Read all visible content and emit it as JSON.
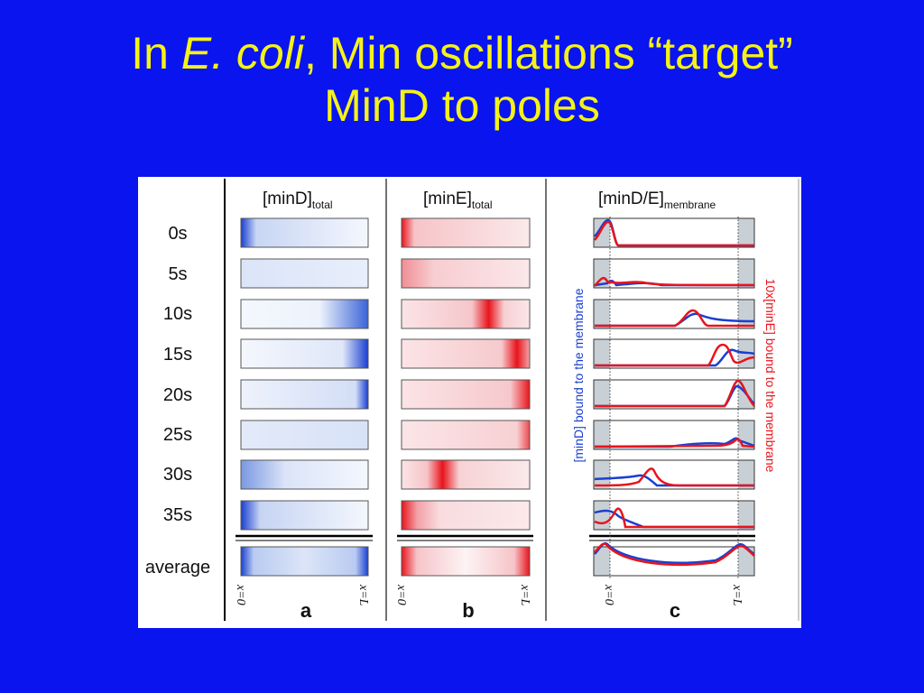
{
  "slide": {
    "title_pre": "In ",
    "title_em": "E. coli",
    "title_post": ", Min oscillations “target”",
    "title_line2": "MinD to poles"
  },
  "figure": {
    "time_labels": [
      "0s",
      "5s",
      "10s",
      "15s",
      "20s",
      "25s",
      "30s",
      "35s"
    ],
    "average_label": "average",
    "panels": {
      "a": {
        "label_main": "[minD]",
        "label_sub": "total",
        "letter": "a",
        "color": "#1a3fd0"
      },
      "b": {
        "label_main": "[minE]",
        "label_sub": "total",
        "letter": "b",
        "color": "#e8141c"
      },
      "c": {
        "label_main": "[minD/E]",
        "label_sub": "membrane",
        "letter": "c"
      }
    },
    "x_start_label": "x=0",
    "x_end_label": "x=L",
    "side_label_left": "[minD] bound to the membrane",
    "side_label_right": "10x[minE] bound to the membrane",
    "colors": {
      "minD": "#1a3fd0",
      "minE": "#e8141c",
      "background": "#0a14ee",
      "title": "#f4f218"
    }
  }
}
